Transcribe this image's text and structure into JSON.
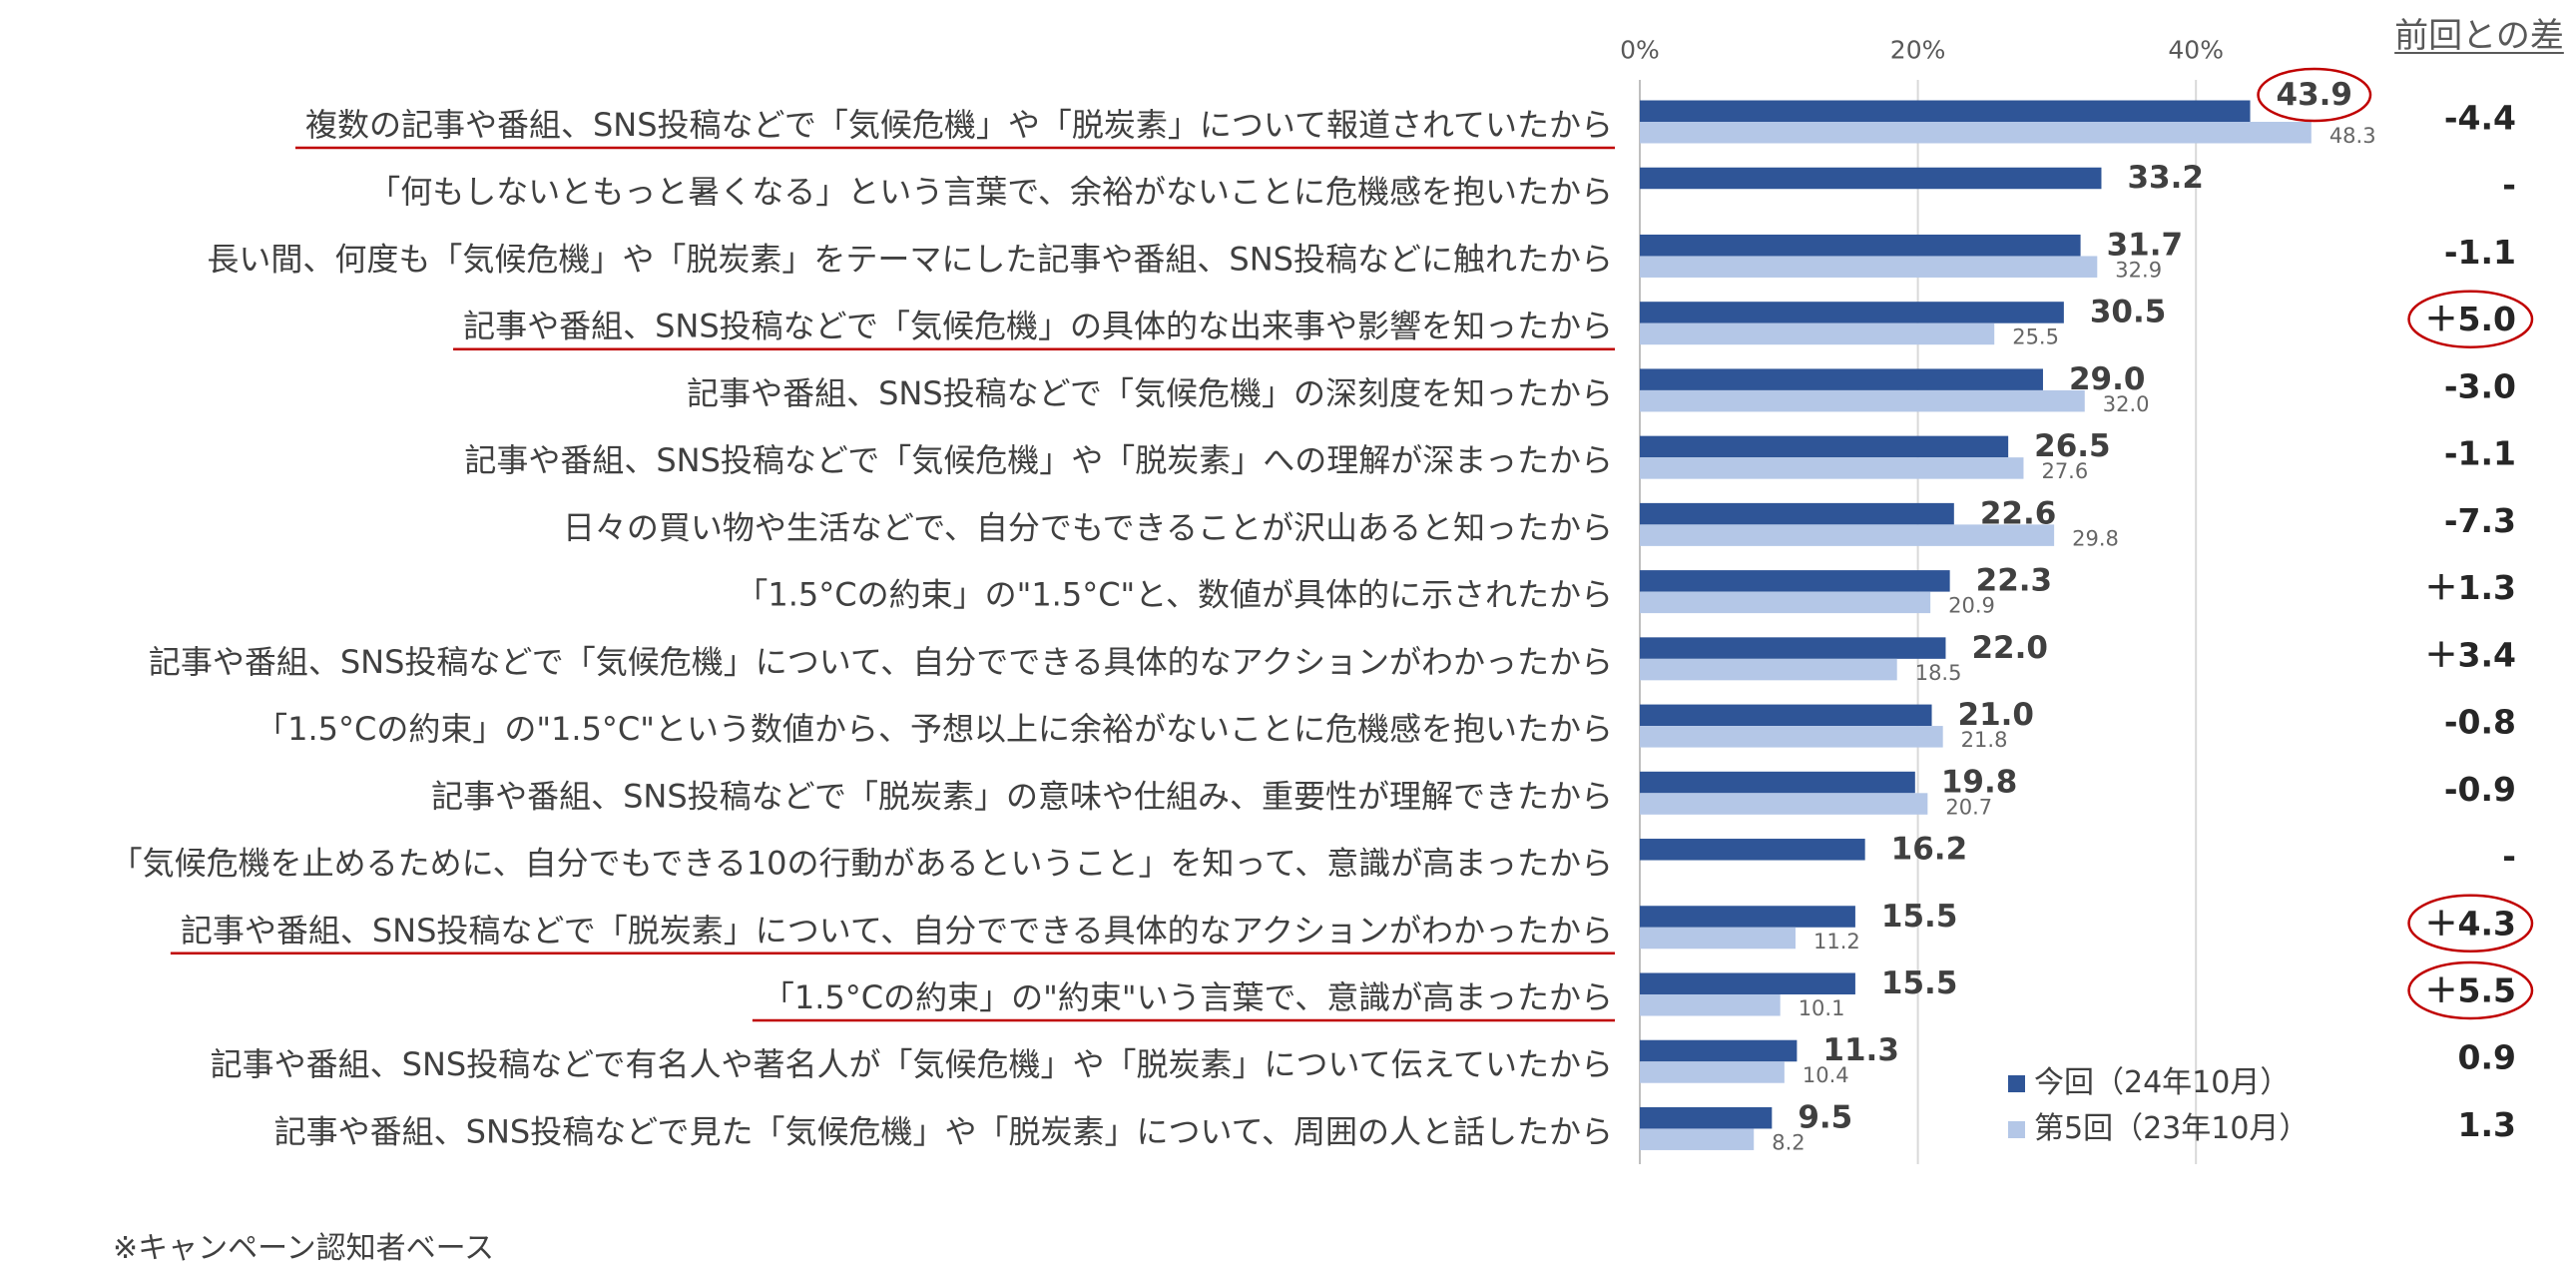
{
  "chart_data": {
    "type": "bar",
    "orientation": "horizontal",
    "categories": [
      "複数の記事や番組、SNS投稿などで「気候危機」や「脱炭素」について報道されていたから",
      "「何もしないともっと暑くなる」という言葉で、余裕がないことに危機感を抱いたから",
      "長い間、何度も「気候危機」や「脱炭素」をテーマにした記事や番組、SNS投稿などに触れたから",
      "記事や番組、SNS投稿などで「気候危機」の具体的な出来事や影響を知ったから",
      "記事や番組、SNS投稿などで「気候危機」の深刻度を知ったから",
      "記事や番組、SNS投稿などで「気候危機」や「脱炭素」への理解が深まったから",
      "日々の買い物や生活などで、自分でもできることが沢山あると知ったから",
      "「1.5°Cの約束」の\"1.5°C\"と、数値が具体的に示されたから",
      "記事や番組、SNS投稿などで「気候危機」について、自分でできる具体的なアクションがわかったから",
      "「1.5°Cの約束」の\"1.5°C\"という数値から、予想以上に余裕がないことに危機感を抱いたから",
      "記事や番組、SNS投稿などで「脱炭素」の意味や仕組み、重要性が理解できたから",
      "「気候危機を止めるために、自分でもできる10の行動があるということ」を知って、意識が高まったから",
      "記事や番組、SNS投稿などで「脱炭素」について、自分でできる具体的なアクションがわかったから",
      "「1.5°Cの約束」の\"約束\"いう言葉で、意識が高まったから",
      "記事や番組、SNS投稿などで有名人や著名人が「気候危機」や「脱炭素」について伝えていたから",
      "記事や番組、SNS投稿などで見た「気候危機」や「脱炭素」について、周囲の人と話したから"
    ],
    "series": [
      {
        "name": "今回（24年10月）",
        "color": "#2f5597",
        "values": [
          43.9,
          33.2,
          31.7,
          30.5,
          29.0,
          26.5,
          22.6,
          22.3,
          22.0,
          21.0,
          19.8,
          16.2,
          15.5,
          15.5,
          11.3,
          9.5
        ]
      },
      {
        "name": "第5回（23年10月）",
        "color": "#b4c7e7",
        "values": [
          48.3,
          null,
          32.9,
          25.5,
          32.0,
          27.6,
          29.8,
          20.9,
          18.5,
          21.8,
          20.7,
          null,
          11.2,
          10.1,
          10.4,
          8.2
        ]
      }
    ],
    "xlim": [
      0,
      50
    ],
    "xticks": [
      0,
      20,
      40
    ],
    "xtick_labels": [
      "0%",
      "20%",
      "40%"
    ],
    "grid": "vertical",
    "legend": "bottom-right",
    "difference": {
      "header": "前回との差",
      "values": [
        "-4.4",
        "-",
        "-1.1",
        "＋5.0",
        "-3.0",
        "-1.1",
        "-7.3",
        "＋1.3",
        "＋3.4",
        "-0.8",
        "-0.9",
        "-",
        "＋4.3",
        "＋5.5",
        "0.9",
        "1.3"
      ]
    },
    "annotations": {
      "annotation_color": "#c00000",
      "underlined_categories": [
        0,
        3,
        12,
        13
      ],
      "circled_values": [
        0
      ],
      "circled_differences": [
        3,
        12,
        13
      ]
    }
  },
  "footnote": "※キャンペーン認知者ベース"
}
